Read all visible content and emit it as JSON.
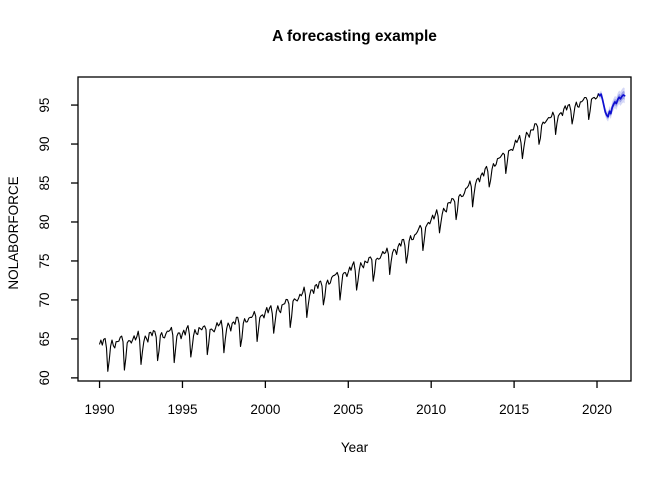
{
  "figure": {
    "title": "A forecasting example",
    "x_axis_label": "Year",
    "y_axis_label": "NOLABORFORCE"
  },
  "chart_data": {
    "type": "line",
    "title": "A forecasting example",
    "xlabel": "Year",
    "ylabel": "NOLABORFORCE",
    "xlim": [
      1988.7,
      2022.05
    ],
    "ylim": [
      59.6,
      98.6
    ],
    "x_ticks": [
      1990,
      1995,
      2000,
      2005,
      2010,
      2015,
      2020
    ],
    "y_ticks": [
      60,
      65,
      70,
      75,
      80,
      85,
      90,
      95
    ],
    "grid": false,
    "legend": false,
    "colors": {
      "observed_line": "#000000",
      "forecast_line": "#0f0fd0",
      "band_inner": "#9aa0e8",
      "band_outer": "#d4d7f6",
      "axis": "#000000",
      "background": "#ffffff"
    },
    "observed": {
      "name": "observed",
      "frequency": "monthly",
      "start_year": 1990,
      "n_points": 362,
      "annual_anchors_years": [
        1990,
        1991,
        1992,
        1993,
        1994,
        1995,
        1996,
        1997,
        1998,
        1999,
        2000,
        2001,
        2002,
        2003,
        2004,
        2005,
        2006,
        2007,
        2008,
        2009,
        2010,
        2011,
        2012,
        2013,
        2014,
        2015,
        2016,
        2017,
        2018,
        2019,
        2020,
        2021
      ],
      "annual_anchors": [
        63.6,
        63.9,
        64.3,
        64.8,
        65.1,
        65.1,
        65.5,
        65.9,
        66.3,
        67.0,
        67.8,
        68.6,
        69.8,
        71.0,
        72.2,
        73.2,
        74.2,
        75.2,
        76.2,
        77.8,
        79.8,
        81.6,
        83.4,
        85.4,
        87.4,
        89.4,
        91.2,
        92.7,
        93.9,
        94.9,
        95.7,
        96.2
      ],
      "seasonal_pattern": [
        0.6,
        0.8,
        0.5,
        0.9,
        1.1,
        0.3,
        -2.4,
        -1.2,
        0.2,
        0.6,
        0.3,
        0.0
      ],
      "amplitude_start": 1.25,
      "amplitude_end": 0.8,
      "wiggle": [
        [
          0.18,
          2.3
        ],
        [
          0.12,
          0.9
        ]
      ],
      "key_points": {
        "start_1990": 63.8,
        "min_early_1990s": 61.4,
        "value_2000": 68.0,
        "value_2010": 80.0,
        "end_early_2020": 96.3
      }
    },
    "forecast": {
      "name": "forecast",
      "x_start": 2020.1667,
      "x_step": 0.0833333,
      "mean": [
        96.2,
        96.4,
        95.7,
        94.9,
        94.1,
        93.7,
        93.5,
        94.2,
        93.9,
        94.7,
        95.1,
        95.4,
        95.2,
        95.7,
        96.0,
        95.8,
        96.1,
        96.3,
        96.2
      ],
      "inner_halfwidth_start": 0.25,
      "inner_halfwidth_growth": 0.015,
      "outer_halfwidth_start": 0.45,
      "outer_halfwidth_growth": 0.03,
      "forecast_min": 93.5,
      "forecast_end": 96.2
    }
  }
}
